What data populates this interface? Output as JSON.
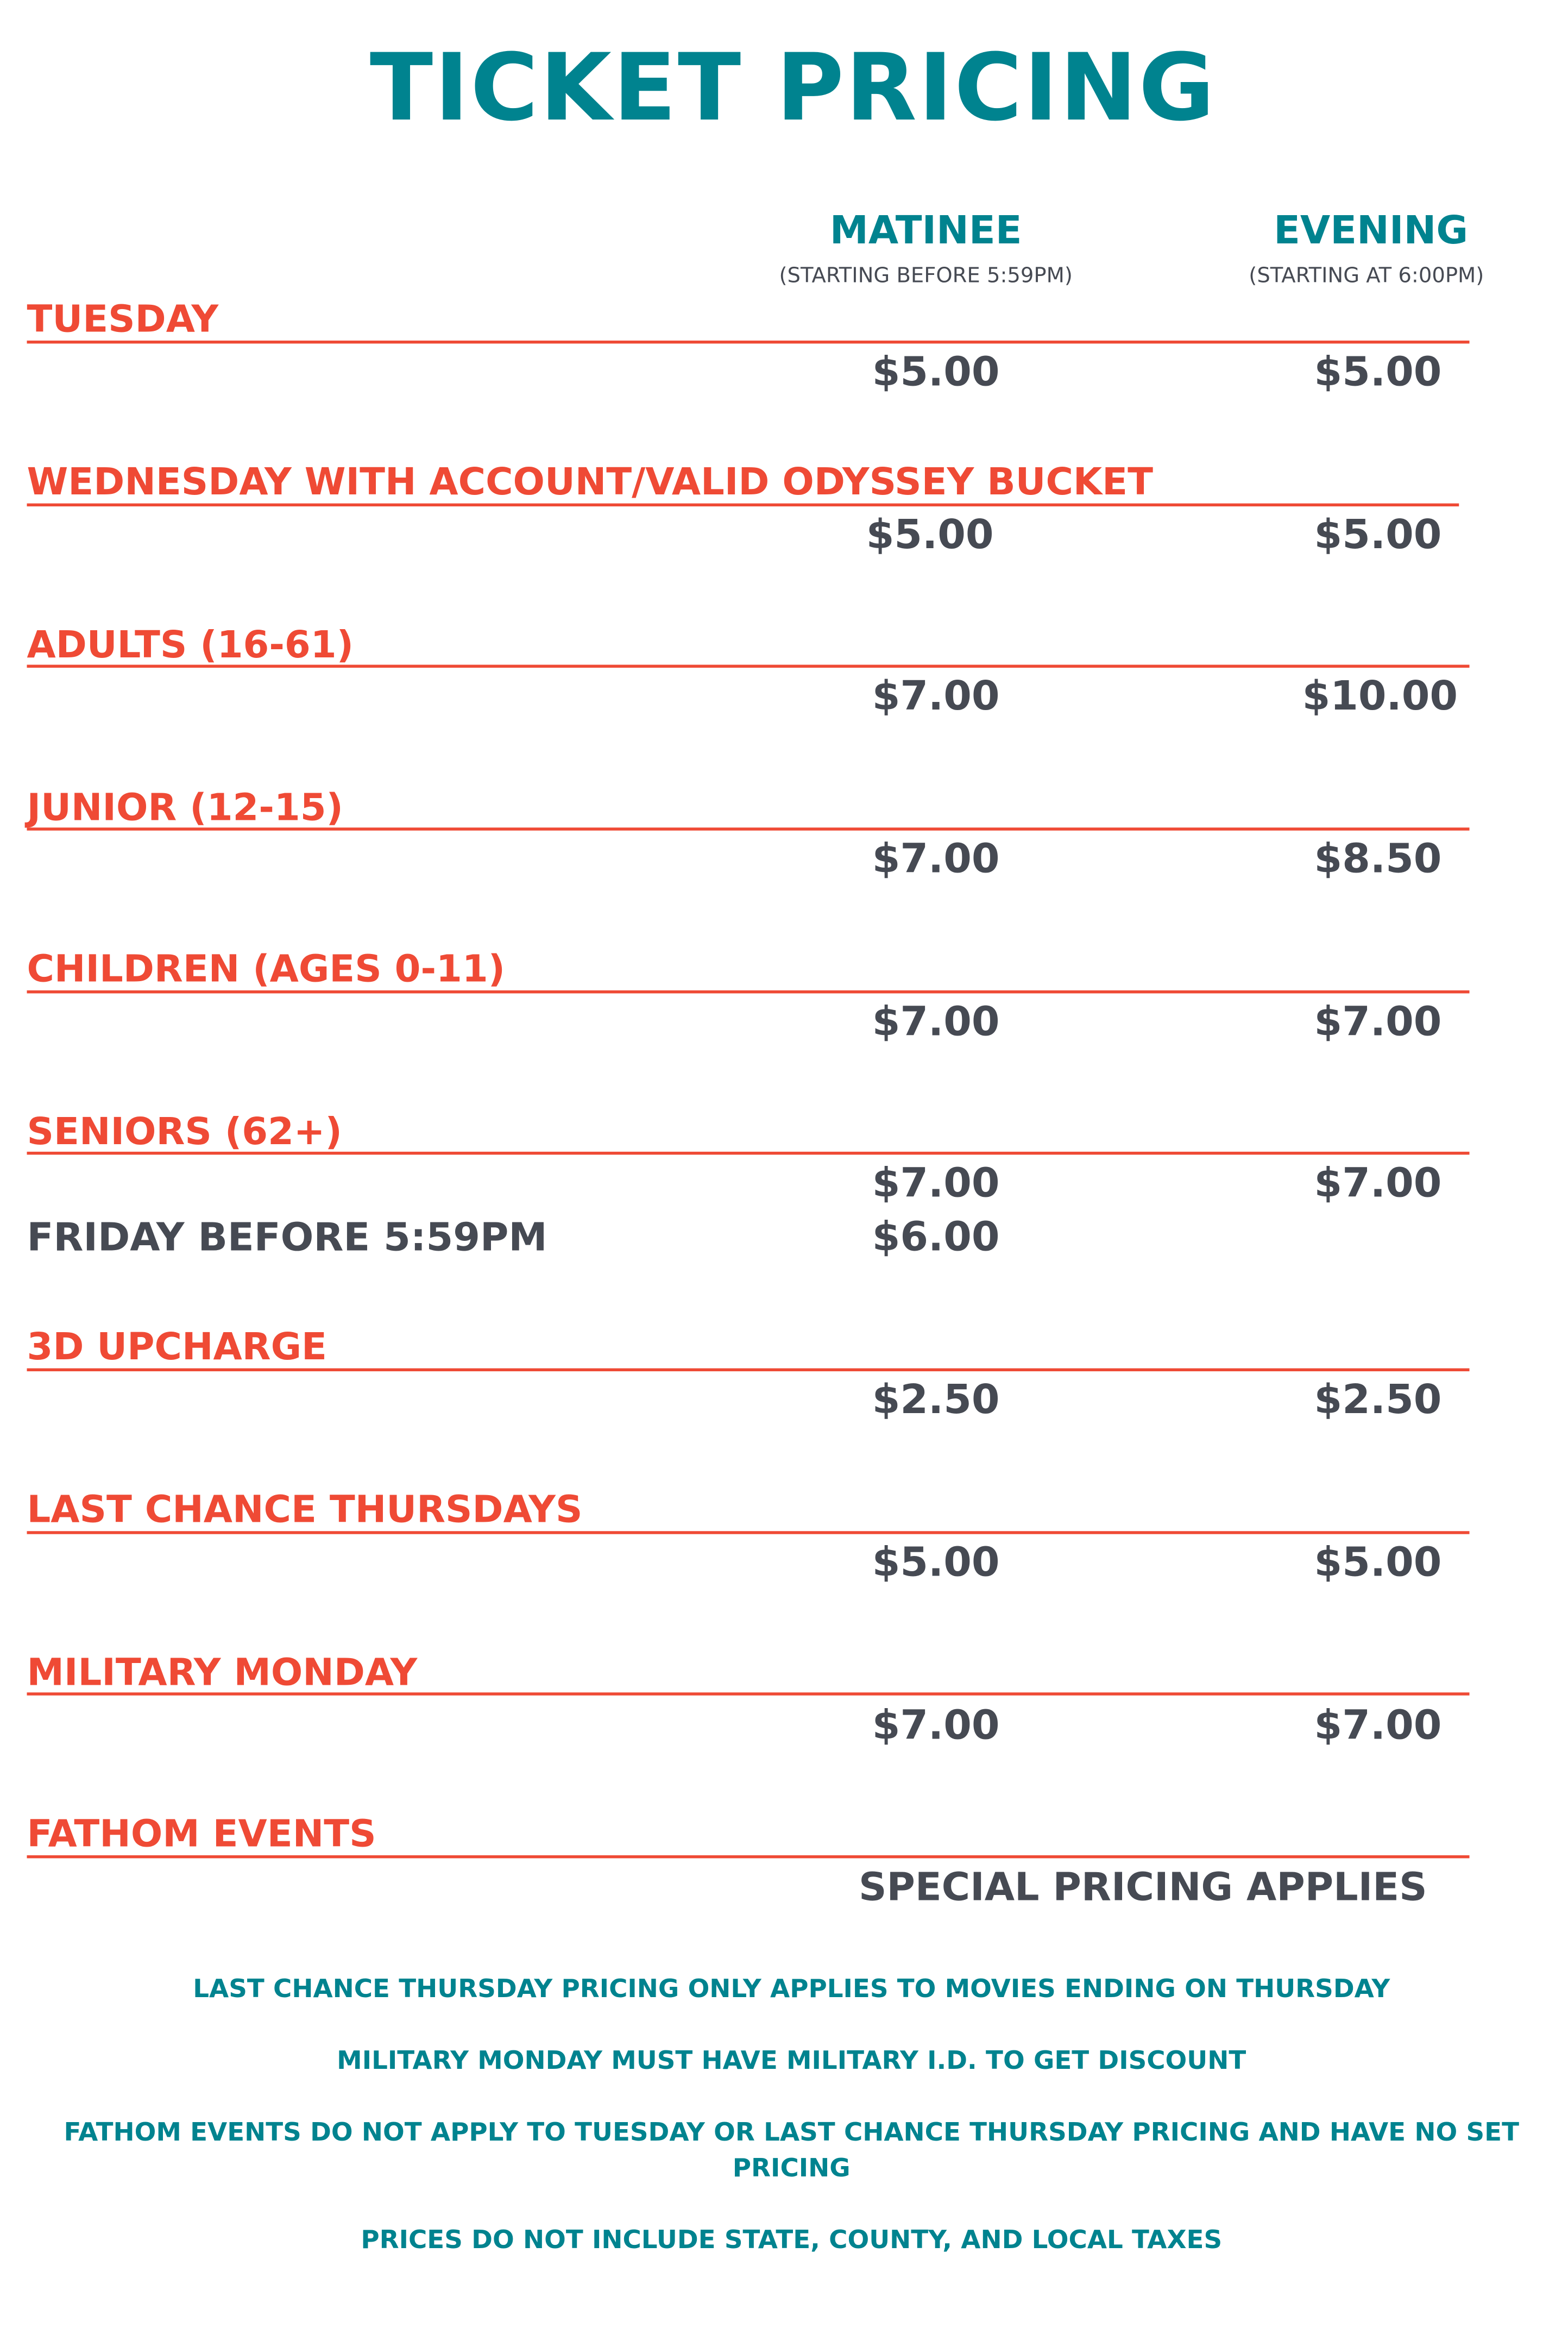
{
  "title": "TICKET PRICING",
  "columns": {
    "matinee": {
      "label": "MATINEE",
      "sub": "(STARTING BEFORE 5:59PM)"
    },
    "evening": {
      "label": "EVENING",
      "sub": "(STARTING AT 6:00PM)"
    }
  },
  "rows": [
    {
      "label": "TUESDAY",
      "matinee": "$5.00",
      "evening": "$5.00"
    },
    {
      "label": "WEDNESDAY WITH ACCOUNT/VALID ODYSSEY BUCKET",
      "matinee": "$5.00",
      "evening": "$5.00"
    },
    {
      "label": "ADULTS (16-61)",
      "matinee": "$7.00",
      "evening": "$10.00"
    },
    {
      "label": "JUNIOR (12-15)",
      "matinee": "$7.00",
      "evening": "$8.50"
    },
    {
      "label": "CHILDREN (AGES 0-11)",
      "matinee": "$7.00",
      "evening": "$7.00"
    },
    {
      "label": "SENIORS (62+)",
      "matinee": "$7.00",
      "evening": "$7.00",
      "extra_label": "FRIDAY BEFORE 5:59PM",
      "extra_matinee": "$6.00"
    },
    {
      "label": "3D UPCHARGE",
      "matinee": "$2.50",
      "evening": "$2.50"
    },
    {
      "label": "LAST CHANCE THURSDAYS",
      "matinee": "$5.00",
      "evening": "$5.00"
    },
    {
      "label": "MILITARY MONDAY",
      "matinee": "$7.00",
      "evening": "$7.00"
    },
    {
      "label": "FATHOM EVENTS",
      "note": "SPECIAL PRICING APPLIES"
    }
  ],
  "notes": [
    "LAST CHANCE THURSDAY PRICING ONLY APPLIES TO MOVIES ENDING ON THURSDAY",
    "MILITARY MONDAY MUST HAVE MILITARY I.D. TO GET DISCOUNT",
    "FATHOM EVENTS DO NOT APPLY TO TUESDAY OR LAST CHANCE THURSDAY PRICING AND HAVE NO SET PRICING",
    "PRICES DO NOT INCLUDE STATE, COUNTY, AND LOCAL TAXES"
  ],
  "colors": {
    "teal": "#00838f",
    "red": "#ef4a35",
    "gray": "#464a53"
  }
}
